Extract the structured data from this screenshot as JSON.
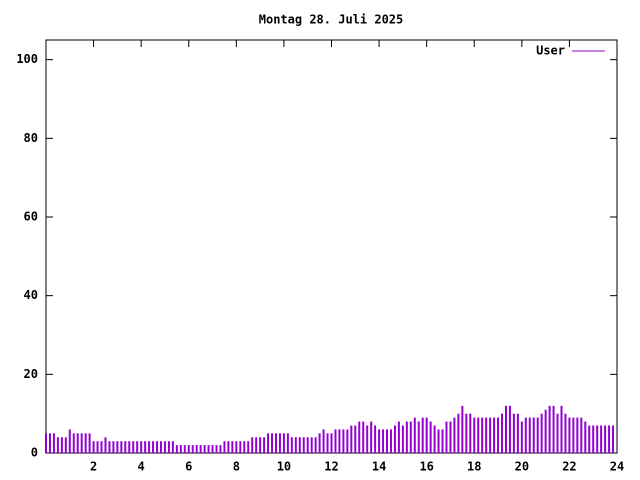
{
  "chart_data": {
    "type": "impulse",
    "title": "Montag 28. Juli 2025",
    "series": [
      {
        "name": "User",
        "color": "#9400d3",
        "values": [
          5,
          5,
          5,
          4,
          4,
          4,
          6,
          5,
          5,
          5,
          5,
          5,
          3,
          3,
          3,
          4,
          3,
          3,
          3,
          3,
          3,
          3,
          3,
          3,
          3,
          3,
          3,
          3,
          3,
          3,
          3,
          3,
          3,
          2,
          2,
          2,
          2,
          2,
          2,
          2,
          2,
          2,
          2,
          2,
          2,
          3,
          3,
          3,
          3,
          3,
          3,
          3,
          4,
          4,
          4,
          4,
          5,
          5,
          5,
          5,
          5,
          5,
          4,
          4,
          4,
          4,
          4,
          4,
          4,
          5,
          6,
          5,
          5,
          6,
          6,
          6,
          6,
          7,
          7,
          8,
          8,
          7,
          8,
          7,
          6,
          6,
          6,
          6,
          7,
          8,
          7,
          8,
          8,
          9,
          8,
          9,
          9,
          8,
          7,
          6,
          6,
          8,
          8,
          9,
          10,
          12,
          10,
          10,
          9,
          9,
          9,
          9,
          9,
          9,
          9,
          10,
          12,
          12,
          10,
          10,
          8,
          9,
          9,
          9,
          9,
          10,
          11,
          12,
          12,
          10,
          12,
          10,
          9,
          9,
          9,
          9,
          8,
          7,
          7,
          7,
          7,
          7,
          7,
          7
        ]
      }
    ],
    "x": [
      0,
      0.167,
      0.333,
      0.5,
      0.667,
      0.833,
      1,
      1.167,
      1.333,
      1.5,
      1.667,
      1.833,
      2,
      2.167,
      2.333,
      2.5,
      2.667,
      2.833,
      3,
      3.167,
      3.333,
      3.5,
      3.667,
      3.833,
      4,
      4.167,
      4.333,
      4.5,
      4.667,
      4.833,
      5,
      5.167,
      5.333,
      5.5,
      5.667,
      5.833,
      6,
      6.167,
      6.333,
      6.5,
      6.667,
      6.833,
      7,
      7.167,
      7.333,
      7.5,
      7.667,
      7.833,
      8,
      8.167,
      8.333,
      8.5,
      8.667,
      8.833,
      9,
      9.167,
      9.333,
      9.5,
      9.667,
      9.833,
      10,
      10.167,
      10.333,
      10.5,
      10.667,
      10.833,
      11,
      11.167,
      11.333,
      11.5,
      11.667,
      11.833,
      12,
      12.167,
      12.333,
      12.5,
      12.667,
      12.833,
      13,
      13.167,
      13.333,
      13.5,
      13.667,
      13.833,
      14,
      14.167,
      14.333,
      14.5,
      14.667,
      14.833,
      15,
      15.167,
      15.333,
      15.5,
      15.667,
      15.833,
      16,
      16.167,
      16.333,
      16.5,
      16.667,
      16.833,
      17,
      17.167,
      17.333,
      17.5,
      17.667,
      17.833,
      18,
      18.167,
      18.333,
      18.5,
      18.667,
      18.833,
      19,
      19.167,
      19.333,
      19.5,
      19.667,
      19.833,
      20,
      20.167,
      20.333,
      20.5,
      20.667,
      20.833,
      21,
      21.167,
      21.333,
      21.5,
      21.667,
      21.833,
      22,
      22.167,
      22.333,
      22.5,
      22.667,
      22.833,
      23,
      23.167,
      23.333,
      23.5,
      23.667,
      23.833
    ],
    "xlim": [
      0,
      24
    ],
    "xticks": [
      2,
      4,
      6,
      8,
      10,
      12,
      14,
      16,
      18,
      20,
      22,
      24
    ],
    "ylim": [
      0,
      105
    ],
    "yticks": [
      0,
      20,
      40,
      60,
      80,
      100
    ],
    "legend": "top-right"
  }
}
